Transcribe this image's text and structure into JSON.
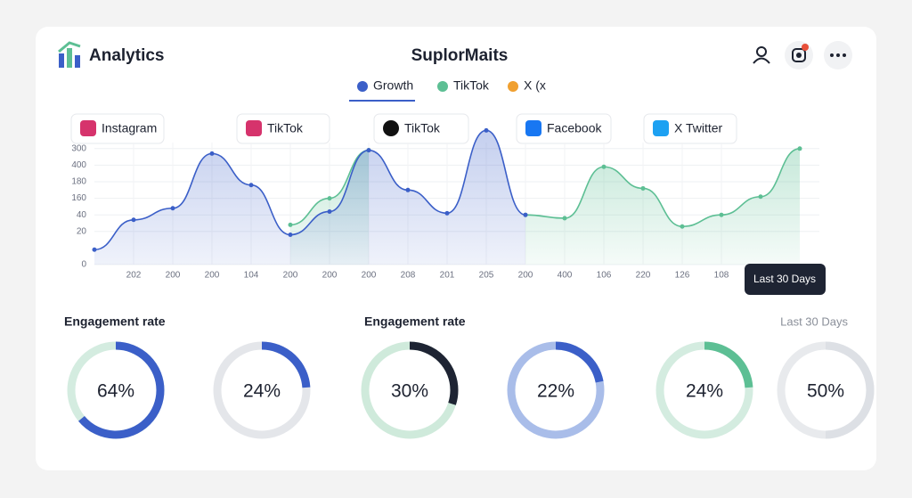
{
  "header": {
    "brand": "Analytics",
    "title": "SuplorMaits"
  },
  "tabs": [
    "Instagram",
    "TikTok",
    "TikTok",
    "Facebook",
    "X Twitter"
  ],
  "tooltip": "Last 30 Days",
  "chart_data": {
    "type": "line",
    "categories": [
      null,
      "202",
      "200",
      "200",
      "104",
      "200",
      "200",
      "200",
      "208",
      "201",
      "205",
      "200",
      "400",
      "106",
      "220",
      "126",
      "108",
      null,
      null
    ],
    "series": [
      {
        "name": "Growth",
        "color": "#3b5fc8",
        "values": [
          0.9,
          2.7,
          3.4,
          6.7,
          4.8,
          1.8,
          3.2,
          6.9,
          4.5,
          3.1,
          8.1,
          3.0,
          null,
          null,
          null,
          null,
          null,
          null,
          null
        ]
      },
      {
        "name": "TikTok",
        "color": "#5dbf94",
        "values": [
          null,
          null,
          null,
          null,
          null,
          2.4,
          4.0,
          6.9,
          null,
          null,
          null,
          3.0,
          2.8,
          5.9,
          4.6,
          2.3,
          3.0,
          4.1,
          7.0
        ]
      },
      {
        "name": "X (x",
        "color": "#f0a030",
        "values": [
          null,
          null,
          null,
          null,
          null,
          null,
          null,
          null,
          null,
          null,
          null,
          null,
          null,
          null,
          null,
          null,
          null,
          null,
          null
        ]
      }
    ],
    "ylim": [
      0,
      8.5
    ],
    "yticks": [
      0,
      {
        "value": 2,
        "label": "20"
      },
      {
        "value": 3,
        "label": "40"
      },
      {
        "value": 4,
        "label": "160"
      },
      {
        "value": 5,
        "label": "180"
      },
      {
        "value": 6,
        "label": "400"
      },
      {
        "value": 7,
        "label": "300"
      }
    ],
    "grid": true
  },
  "engagement": {
    "left": "Engagement rate",
    "middle": "Engagement rate",
    "period": "Last 30 Days"
  },
  "donuts": [
    {
      "value": 64,
      "label": "64%",
      "color": "#3b5fc8",
      "track": "#d4ece0"
    },
    {
      "value": 24,
      "label": "24%",
      "color": "#3b5fc8",
      "track": "#e4e6ea"
    },
    {
      "value": 30,
      "label": "30%",
      "color": "#1e2433",
      "track": "#cfeadb"
    },
    {
      "value": 22,
      "label": "22%",
      "color": "#3b5fc8",
      "track": "#a9bde9"
    },
    {
      "value": 24,
      "label": "24%",
      "color": "#5dbf94",
      "track": "#d4ece0"
    },
    {
      "value": 50,
      "label": "50%",
      "color": "#dde0e5",
      "track": "#e8eaed"
    }
  ]
}
